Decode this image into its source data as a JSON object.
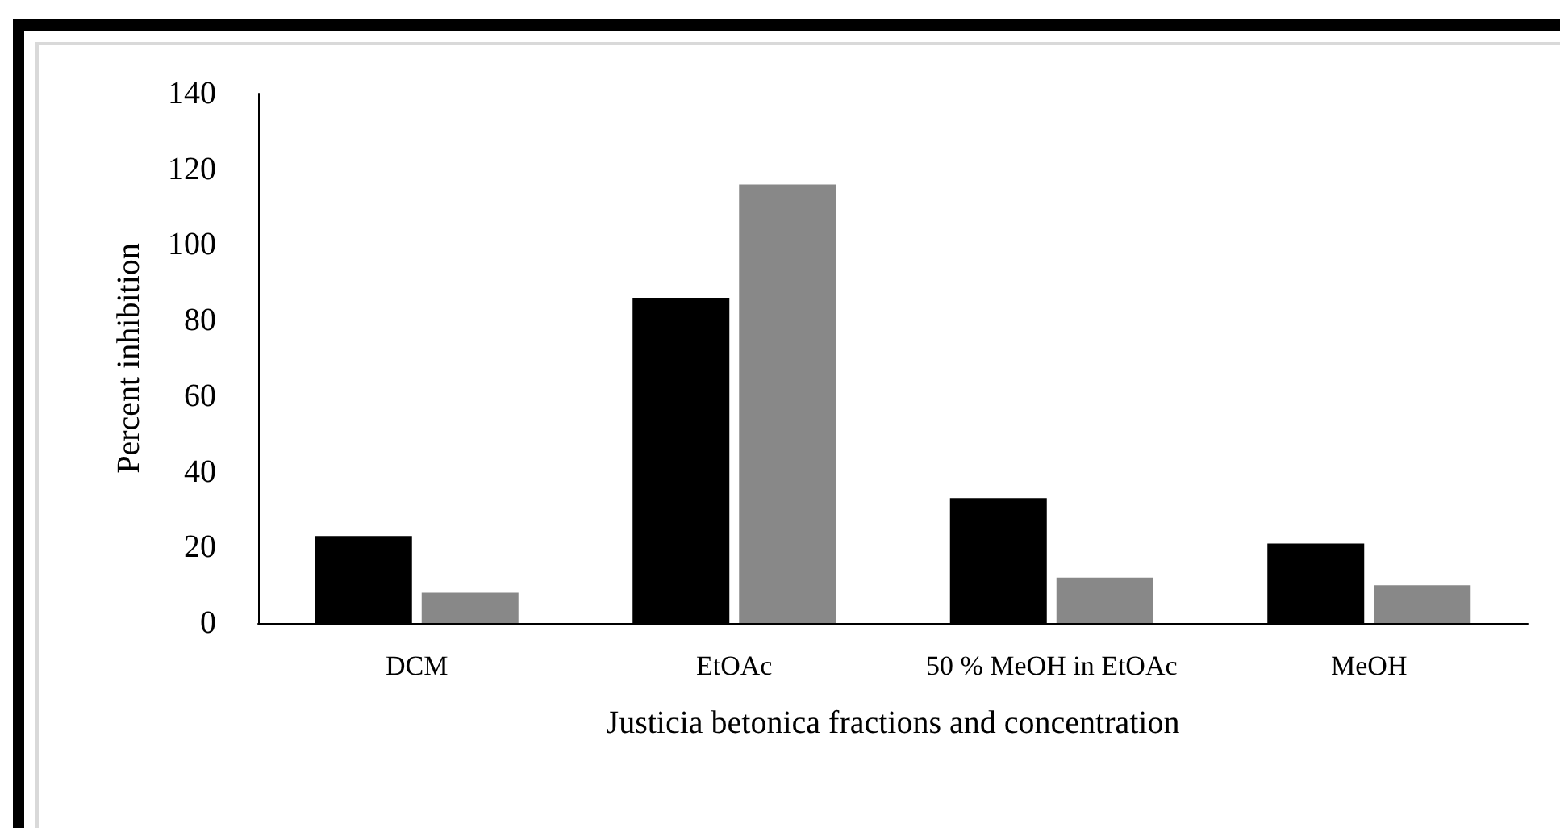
{
  "chart_data": {
    "type": "bar",
    "xlabel": "Justicia betonica fractions and concentration",
    "ylabel": "Percent inhibition",
    "categories": [
      "DCM",
      "EtOAc",
      "50 % MeOH in EtOAc",
      "MeOH"
    ],
    "series": [
      {
        "color": "#000000",
        "values": [
          23,
          86,
          33,
          21
        ]
      },
      {
        "color": "#888888",
        "values": [
          8,
          116,
          12,
          10
        ]
      }
    ],
    "ylim": [
      0,
      140
    ],
    "yticks": [
      0,
      20,
      40,
      60,
      80,
      100,
      120,
      140
    ],
    "grid": false
  }
}
